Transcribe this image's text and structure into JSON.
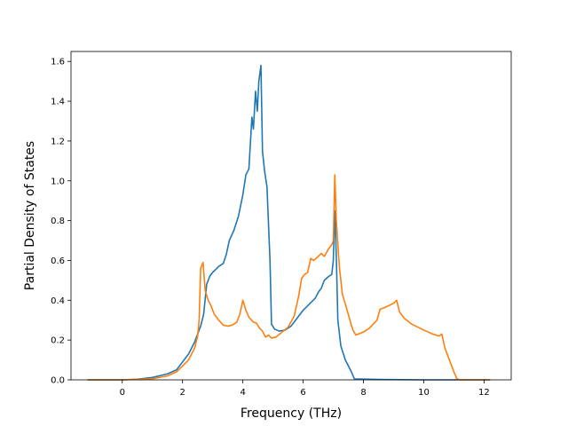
{
  "chart_data": {
    "type": "line",
    "title": "",
    "xlabel": "Frequency (THz)",
    "ylabel": "Partial Density of States",
    "xlim": [
      -1.7,
      12.9
    ],
    "ylim": [
      0.0,
      1.65
    ],
    "xticks": [
      0,
      2,
      4,
      6,
      8,
      10,
      12
    ],
    "xtick_labels": [
      "0",
      "2",
      "4",
      "6",
      "8",
      "10",
      "12"
    ],
    "yticks": [
      0.0,
      0.2,
      0.4,
      0.6,
      0.8,
      1.0,
      1.2,
      1.4,
      1.6
    ],
    "ytick_labels": [
      "0.0",
      "0.2",
      "0.4",
      "0.6",
      "0.8",
      "1.0",
      "1.2",
      "1.4",
      "1.6"
    ],
    "grid": false,
    "legend": "none",
    "series": [
      {
        "color": "#1f77b4",
        "points": [
          [
            -1.15,
            0
          ],
          [
            0,
            0
          ],
          [
            0.5,
            0.003
          ],
          [
            1,
            0.012
          ],
          [
            1.5,
            0.03
          ],
          [
            1.8,
            0.05
          ],
          [
            2.0,
            0.09
          ],
          [
            2.2,
            0.13
          ],
          [
            2.4,
            0.19
          ],
          [
            2.6,
            0.27
          ],
          [
            2.7,
            0.33
          ],
          [
            2.8,
            0.48
          ],
          [
            2.9,
            0.52
          ],
          [
            3.0,
            0.54
          ],
          [
            3.2,
            0.57
          ],
          [
            3.35,
            0.585
          ],
          [
            3.45,
            0.63
          ],
          [
            3.55,
            0.7
          ],
          [
            3.7,
            0.75
          ],
          [
            3.85,
            0.82
          ],
          [
            4.0,
            0.93
          ],
          [
            4.1,
            1.03
          ],
          [
            4.2,
            1.06
          ],
          [
            4.3,
            1.32
          ],
          [
            4.35,
            1.26
          ],
          [
            4.42,
            1.45
          ],
          [
            4.48,
            1.35
          ],
          [
            4.53,
            1.5
          ],
          [
            4.6,
            1.58
          ],
          [
            4.65,
            1.15
          ],
          [
            4.72,
            1.05
          ],
          [
            4.8,
            0.97
          ],
          [
            4.9,
            0.6
          ],
          [
            4.95,
            0.28
          ],
          [
            5.05,
            0.255
          ],
          [
            5.2,
            0.245
          ],
          [
            5.4,
            0.25
          ],
          [
            5.6,
            0.27
          ],
          [
            5.8,
            0.31
          ],
          [
            6.0,
            0.35
          ],
          [
            6.2,
            0.38
          ],
          [
            6.4,
            0.41
          ],
          [
            6.5,
            0.44
          ],
          [
            6.6,
            0.46
          ],
          [
            6.7,
            0.5
          ],
          [
            6.85,
            0.52
          ],
          [
            6.95,
            0.53
          ],
          [
            7.0,
            0.6
          ],
          [
            7.05,
            0.85
          ],
          [
            7.1,
            0.62
          ],
          [
            7.15,
            0.3
          ],
          [
            7.25,
            0.17
          ],
          [
            7.4,
            0.1
          ],
          [
            7.6,
            0.04
          ],
          [
            7.7,
            0.005
          ],
          [
            8.5,
            0.002
          ],
          [
            10,
            0
          ],
          [
            12.2,
            0
          ]
        ]
      },
      {
        "color": "#ff7f0e",
        "points": [
          [
            -1.15,
            0
          ],
          [
            0,
            0
          ],
          [
            1,
            0.005
          ],
          [
            1.5,
            0.02
          ],
          [
            1.8,
            0.04
          ],
          [
            2.0,
            0.07
          ],
          [
            2.2,
            0.1
          ],
          [
            2.4,
            0.16
          ],
          [
            2.5,
            0.22
          ],
          [
            2.55,
            0.3
          ],
          [
            2.6,
            0.56
          ],
          [
            2.68,
            0.59
          ],
          [
            2.75,
            0.45
          ],
          [
            2.85,
            0.4
          ],
          [
            2.95,
            0.37
          ],
          [
            3.05,
            0.33
          ],
          [
            3.2,
            0.3
          ],
          [
            3.35,
            0.275
          ],
          [
            3.5,
            0.27
          ],
          [
            3.65,
            0.275
          ],
          [
            3.8,
            0.29
          ],
          [
            3.9,
            0.33
          ],
          [
            4.0,
            0.4
          ],
          [
            4.1,
            0.35
          ],
          [
            4.2,
            0.315
          ],
          [
            4.35,
            0.29
          ],
          [
            4.45,
            0.285
          ],
          [
            4.55,
            0.26
          ],
          [
            4.65,
            0.245
          ],
          [
            4.75,
            0.215
          ],
          [
            4.85,
            0.225
          ],
          [
            4.95,
            0.21
          ],
          [
            5.1,
            0.215
          ],
          [
            5.3,
            0.24
          ],
          [
            5.5,
            0.265
          ],
          [
            5.7,
            0.32
          ],
          [
            5.85,
            0.42
          ],
          [
            5.95,
            0.51
          ],
          [
            6.05,
            0.53
          ],
          [
            6.15,
            0.54
          ],
          [
            6.25,
            0.61
          ],
          [
            6.35,
            0.6
          ],
          [
            6.5,
            0.62
          ],
          [
            6.6,
            0.635
          ],
          [
            6.7,
            0.62
          ],
          [
            6.85,
            0.66
          ],
          [
            6.95,
            0.68
          ],
          [
            7.0,
            0.7
          ],
          [
            7.05,
            1.03
          ],
          [
            7.1,
            0.8
          ],
          [
            7.2,
            0.57
          ],
          [
            7.3,
            0.43
          ],
          [
            7.4,
            0.38
          ],
          [
            7.55,
            0.3
          ],
          [
            7.65,
            0.25
          ],
          [
            7.75,
            0.225
          ],
          [
            8.0,
            0.24
          ],
          [
            8.2,
            0.26
          ],
          [
            8.45,
            0.3
          ],
          [
            8.55,
            0.355
          ],
          [
            8.65,
            0.36
          ],
          [
            8.8,
            0.37
          ],
          [
            9.0,
            0.385
          ],
          [
            9.1,
            0.4
          ],
          [
            9.2,
            0.34
          ],
          [
            9.35,
            0.31
          ],
          [
            9.6,
            0.28
          ],
          [
            10.0,
            0.25
          ],
          [
            10.3,
            0.23
          ],
          [
            10.5,
            0.22
          ],
          [
            10.6,
            0.23
          ],
          [
            10.7,
            0.16
          ],
          [
            10.8,
            0.12
          ],
          [
            10.9,
            0.08
          ],
          [
            11.0,
            0.04
          ],
          [
            11.1,
            0.005
          ],
          [
            11.2,
            0
          ],
          [
            12.2,
            0
          ]
        ]
      }
    ]
  }
}
